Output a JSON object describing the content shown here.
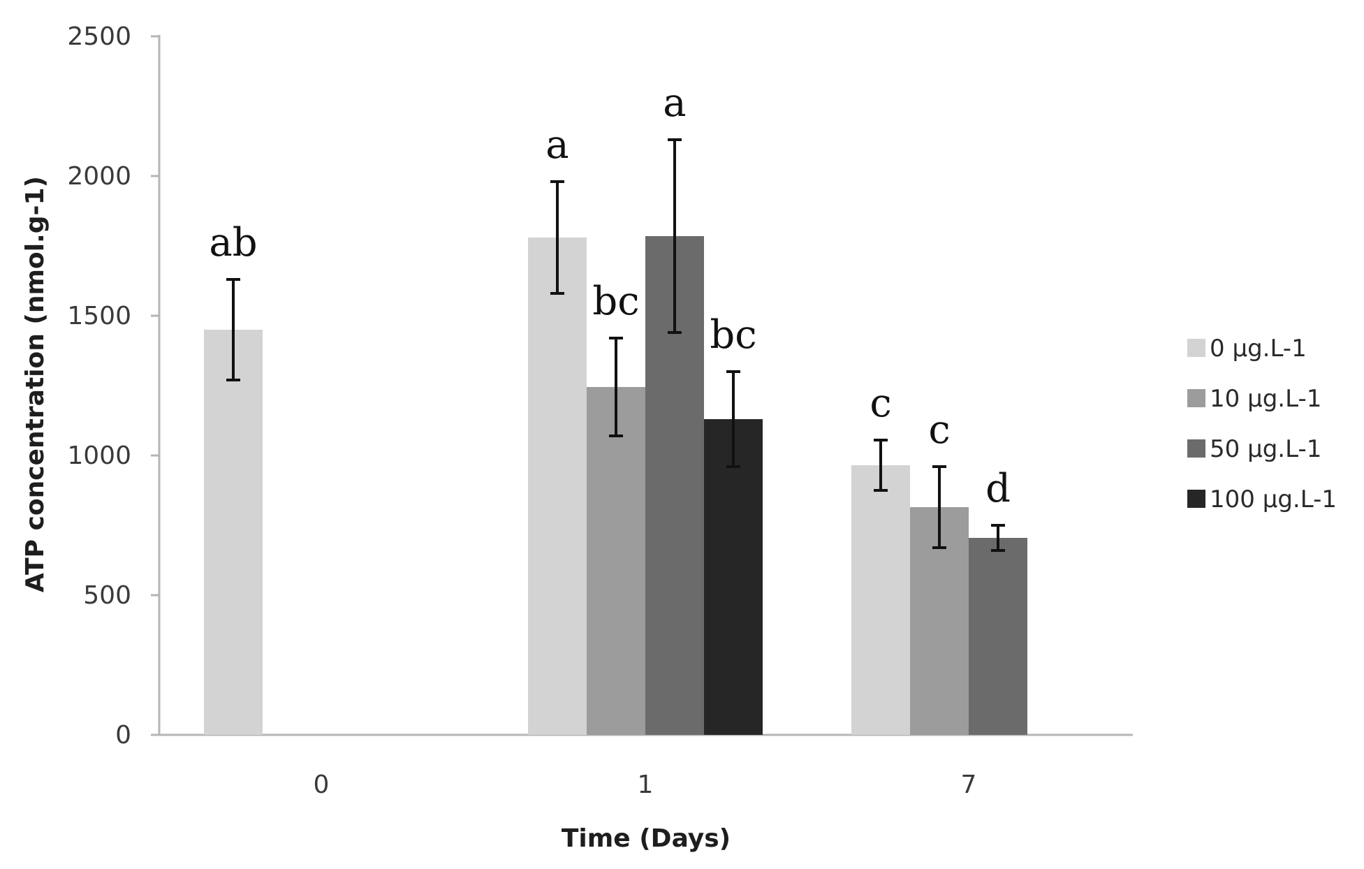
{
  "chart_data": {
    "type": "bar",
    "title": "",
    "xlabel": "Time (Days)",
    "ylabel": "ATP concentration (nmol.g-1)",
    "ylim": [
      0,
      2500
    ],
    "yticks": [
      0,
      500,
      1000,
      1500,
      2000,
      2500
    ],
    "grid": false,
    "legend_position": "right",
    "categories": [
      "0",
      "1",
      "7"
    ],
    "series": [
      {
        "name": "0 µg.L-1",
        "color": "#d3d3d3",
        "values": [
          1450,
          1780,
          965
        ],
        "errors": [
          180,
          200,
          90
        ],
        "labels": [
          "ab",
          "a",
          "c"
        ]
      },
      {
        "name": "10 µg.L-1",
        "color": "#9c9c9c",
        "values": [
          null,
          1245,
          815
        ],
        "errors": [
          null,
          175,
          145
        ],
        "labels": [
          null,
          "bc",
          "c"
        ]
      },
      {
        "name": "50 µg.L-1",
        "color": "#6b6b6b",
        "values": [
          null,
          1785,
          705
        ],
        "errors": [
          null,
          345,
          45
        ],
        "labels": [
          null,
          "a",
          "d"
        ]
      },
      {
        "name": "100 µg.L-1",
        "color": "#262626",
        "values": [
          null,
          1130,
          null
        ],
        "errors": [
          null,
          170,
          null
        ],
        "labels": [
          null,
          "bc",
          null
        ]
      }
    ]
  }
}
